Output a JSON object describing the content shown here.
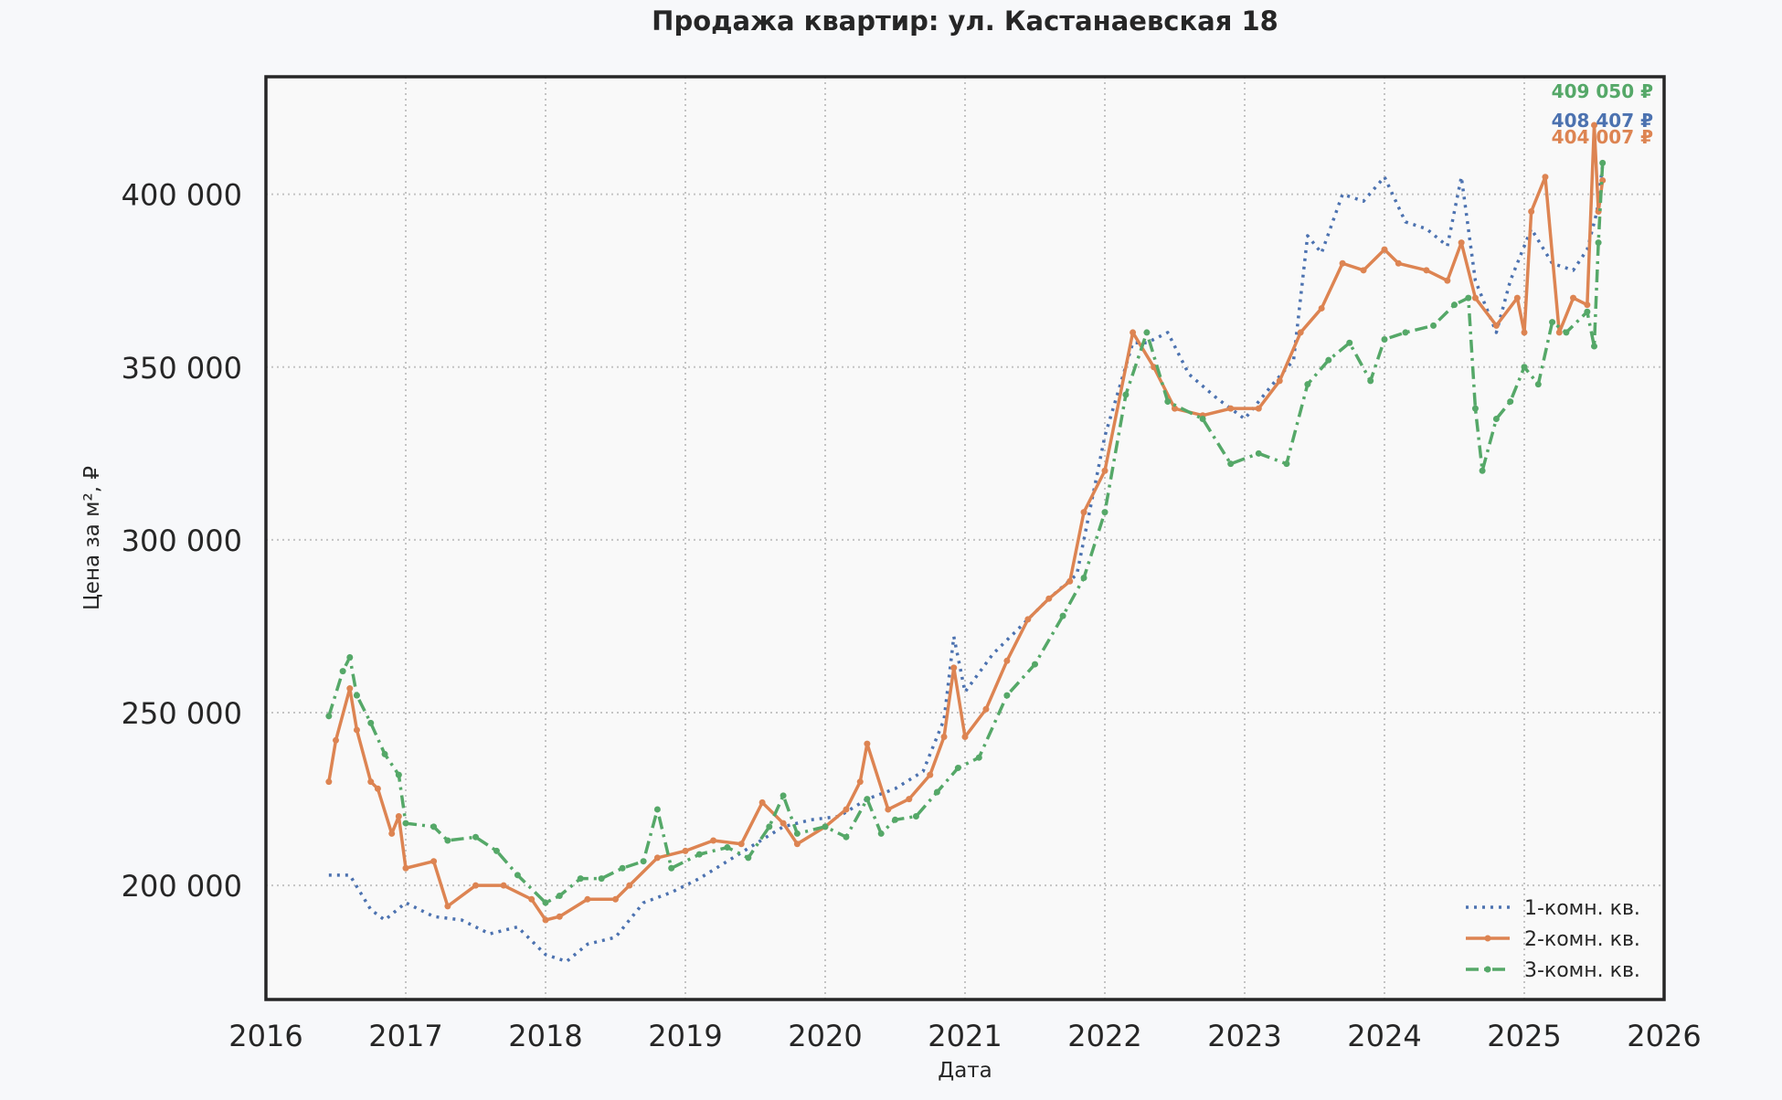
{
  "chart_data": {
    "type": "line",
    "title": "Продажа квартир: ул. Кастанаевская 18",
    "xlabel": "Дата",
    "ylabel": "Цена за м², ₽",
    "xlim": [
      2016,
      2026
    ],
    "ylim": [
      167000,
      434000
    ],
    "x_ticks": [
      "2016",
      "2017",
      "2018",
      "2019",
      "2020",
      "2021",
      "2022",
      "2023",
      "2024",
      "2025",
      "2026"
    ],
    "y_ticks": [
      "200 000",
      "250 000",
      "300 000",
      "350 000",
      "400 000"
    ],
    "y_tick_values": [
      200000,
      250000,
      300000,
      350000,
      400000
    ],
    "grid": true,
    "legend_position": "lower-right",
    "series": [
      {
        "name": "1-комн. кв.",
        "color": "#4c72b0",
        "style": "dotted",
        "end_label": "408 407 ₽",
        "x": [
          2016.45,
          2016.6,
          2016.75,
          2016.85,
          2017.0,
          2017.2,
          2017.4,
          2017.6,
          2017.8,
          2018.0,
          2018.15,
          2018.3,
          2018.5,
          2018.7,
          2018.9,
          2019.1,
          2019.3,
          2019.5,
          2019.7,
          2019.9,
          2020.1,
          2020.3,
          2020.5,
          2020.7,
          2020.85,
          2020.92,
          2021.0,
          2021.2,
          2021.4,
          2021.6,
          2021.8,
          2022.0,
          2022.2,
          2022.3,
          2022.45,
          2022.6,
          2022.8,
          2023.0,
          2023.2,
          2023.35,
          2023.45,
          2023.55,
          2023.7,
          2023.85,
          2024.0,
          2024.15,
          2024.3,
          2024.45,
          2024.55,
          2024.65,
          2024.8,
          2024.9,
          2025.05,
          2025.2,
          2025.35,
          2025.45,
          2025.52,
          2025.56
        ],
        "y": [
          203000,
          203000,
          193000,
          190000,
          195000,
          191000,
          190000,
          186000,
          188000,
          180000,
          178000,
          183000,
          185000,
          195000,
          198000,
          202000,
          207000,
          212000,
          217000,
          219000,
          220000,
          225000,
          228000,
          233000,
          248000,
          272000,
          256000,
          267000,
          275000,
          283000,
          290000,
          330000,
          357000,
          357000,
          360000,
          348000,
          341000,
          335000,
          345000,
          352000,
          388000,
          383000,
          400000,
          398000,
          405000,
          392000,
          390000,
          385000,
          405000,
          375000,
          360000,
          375000,
          390000,
          380000,
          378000,
          384000,
          395000,
          408407
        ]
      },
      {
        "name": "2-комн. кв.",
        "color": "#dd8452",
        "style": "solid",
        "end_label": "404 007 ₽",
        "x": [
          2016.45,
          2016.5,
          2016.6,
          2016.65,
          2016.75,
          2016.8,
          2016.9,
          2016.95,
          2017.0,
          2017.2,
          2017.3,
          2017.5,
          2017.7,
          2017.9,
          2018.0,
          2018.1,
          2018.3,
          2018.5,
          2018.6,
          2018.8,
          2019.0,
          2019.2,
          2019.4,
          2019.55,
          2019.7,
          2019.8,
          2020.0,
          2020.15,
          2020.25,
          2020.3,
          2020.45,
          2020.6,
          2020.75,
          2020.85,
          2020.92,
          2021.0,
          2021.15,
          2021.3,
          2021.45,
          2021.6,
          2021.75,
          2021.85,
          2022.0,
          2022.2,
          2022.35,
          2022.5,
          2022.7,
          2022.9,
          2023.1,
          2023.25,
          2023.4,
          2023.55,
          2023.7,
          2023.85,
          2024.0,
          2024.1,
          2024.3,
          2024.45,
          2024.55,
          2024.65,
          2024.8,
          2024.95,
          2025.0,
          2025.05,
          2025.15,
          2025.25,
          2025.35,
          2025.45,
          2025.5,
          2025.53,
          2025.56
        ],
        "y": [
          230000,
          242000,
          257000,
          245000,
          230000,
          228000,
          215000,
          220000,
          205000,
          207000,
          194000,
          200000,
          200000,
          196000,
          190000,
          191000,
          196000,
          196000,
          200000,
          208000,
          210000,
          213000,
          212000,
          224000,
          218000,
          212000,
          217000,
          222000,
          230000,
          241000,
          222000,
          225000,
          232000,
          243000,
          263000,
          243000,
          251000,
          265000,
          277000,
          283000,
          288000,
          308000,
          320000,
          360000,
          350000,
          338000,
          336000,
          338000,
          338000,
          346000,
          360000,
          367000,
          380000,
          378000,
          384000,
          380000,
          378000,
          375000,
          386000,
          370000,
          362000,
          370000,
          360000,
          395000,
          405000,
          360000,
          370000,
          368000,
          420000,
          395000,
          404007
        ]
      },
      {
        "name": "3-комн. кв.",
        "color": "#55a868",
        "style": "dashdot",
        "end_label": "409 050 ₽",
        "x": [
          2016.45,
          2016.55,
          2016.6,
          2016.65,
          2016.75,
          2016.85,
          2016.95,
          2017.0,
          2017.2,
          2017.3,
          2017.5,
          2017.65,
          2017.8,
          2018.0,
          2018.1,
          2018.25,
          2018.4,
          2018.55,
          2018.7,
          2018.8,
          2018.9,
          2019.1,
          2019.3,
          2019.45,
          2019.6,
          2019.7,
          2019.8,
          2020.0,
          2020.15,
          2020.3,
          2020.4,
          2020.5,
          2020.65,
          2020.8,
          2020.95,
          2021.1,
          2021.3,
          2021.5,
          2021.7,
          2021.85,
          2022.0,
          2022.15,
          2022.3,
          2022.45,
          2022.7,
          2022.9,
          2023.1,
          2023.3,
          2023.45,
          2023.6,
          2023.75,
          2023.9,
          2024.0,
          2024.15,
          2024.35,
          2024.5,
          2024.6,
          2024.65,
          2024.7,
          2024.8,
          2024.9,
          2025.0,
          2025.1,
          2025.2,
          2025.3,
          2025.45,
          2025.5,
          2025.53,
          2025.56
        ],
        "y": [
          249000,
          262000,
          266000,
          255000,
          247000,
          238000,
          232000,
          218000,
          217000,
          213000,
          214000,
          210000,
          203000,
          195000,
          197000,
          202000,
          202000,
          205000,
          207000,
          222000,
          205000,
          209000,
          211000,
          208000,
          217000,
          226000,
          215000,
          217000,
          214000,
          225000,
          215000,
          219000,
          220000,
          227000,
          234000,
          237000,
          255000,
          264000,
          278000,
          289000,
          308000,
          342000,
          360000,
          340000,
          335000,
          322000,
          325000,
          322000,
          345000,
          352000,
          357000,
          346000,
          358000,
          360000,
          362000,
          368000,
          370000,
          338000,
          320000,
          335000,
          340000,
          350000,
          345000,
          363000,
          360000,
          366000,
          356000,
          386000,
          409050
        ]
      }
    ]
  }
}
